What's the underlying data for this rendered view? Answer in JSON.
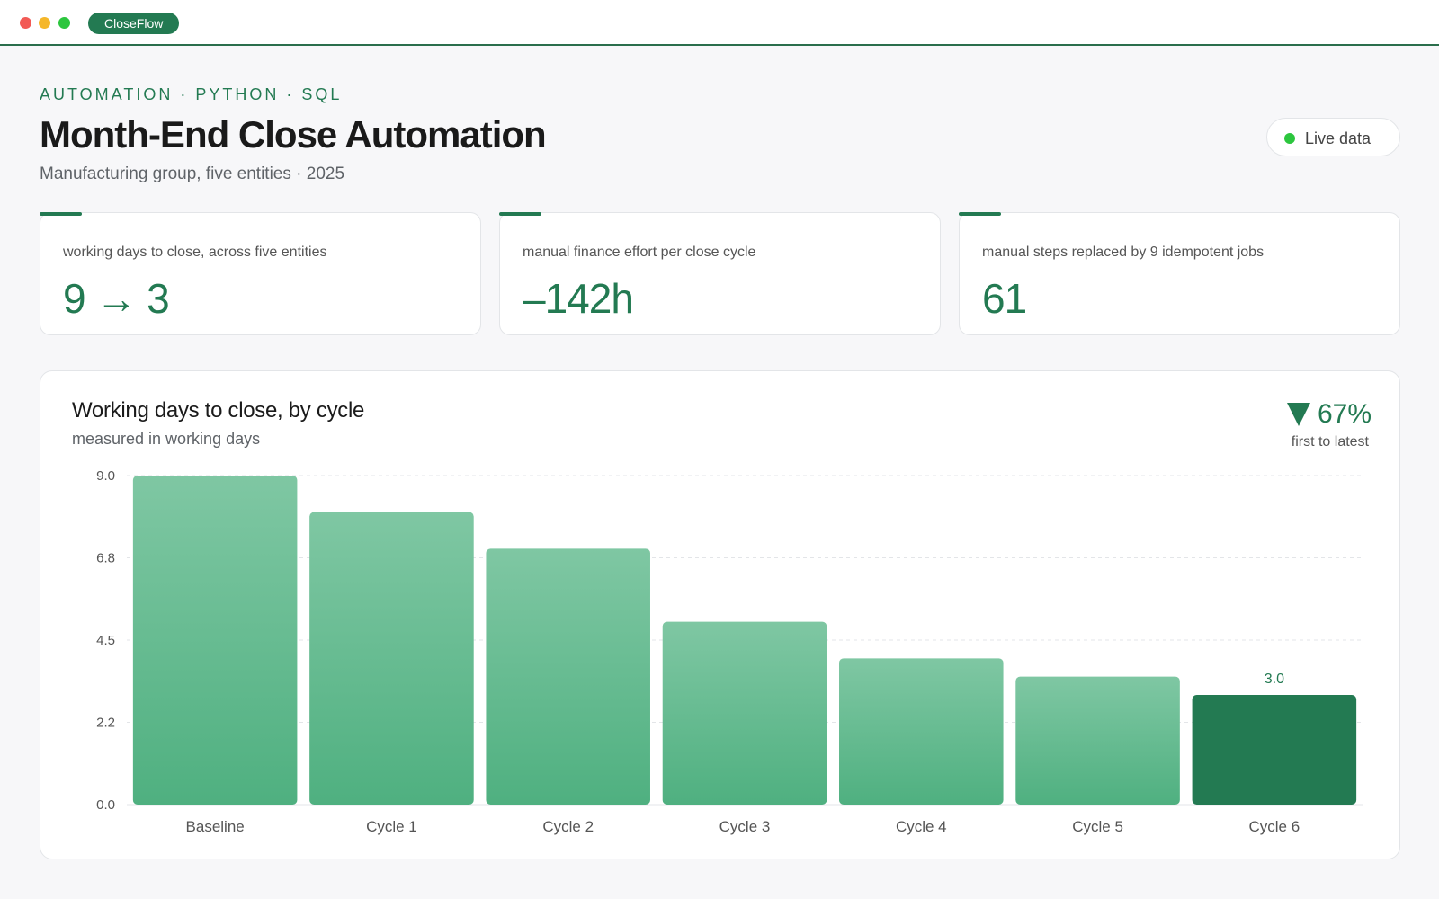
{
  "window": {
    "brand": "CloseFlow"
  },
  "header": {
    "eyebrow": "AUTOMATION · PYTHON · SQL",
    "title": "Month-End Close Automation",
    "subtitle": "Manufacturing group, five entities · 2025",
    "status_label": "Live data"
  },
  "kpis": [
    {
      "label": "working days to close, across five entities",
      "value": "9 → 3"
    },
    {
      "label": "manual finance effort per close cycle",
      "value": "–142h"
    },
    {
      "label": "manual steps replaced by 9 idempotent jobs",
      "value": "61"
    }
  ],
  "chart_panel": {
    "title": "Working days to close, by cycle",
    "subtitle": "measured in working days",
    "delta_value": "67%",
    "delta_caption": "first to latest",
    "delta_icon": "triangle-down-icon"
  },
  "colors": {
    "accent": "#237a52",
    "bar_top": "#7fc7a3",
    "bar_bottom": "#4fb080",
    "highlight_bar": "#237a52"
  },
  "chart_data": {
    "type": "bar",
    "categories": [
      "Baseline",
      "Cycle 1",
      "Cycle 2",
      "Cycle 3",
      "Cycle 4",
      "Cycle 5",
      "Cycle 6"
    ],
    "values": [
      9.0,
      8.0,
      7.0,
      5.0,
      4.0,
      3.5,
      3.0
    ],
    "ylim": [
      0,
      9.0
    ],
    "yticks": [
      "0.0",
      "2.2",
      "4.5",
      "6.8",
      "9.0"
    ],
    "ytick_values": [
      0,
      2.25,
      4.5,
      6.75,
      9.0
    ],
    "highlighted_index": 6,
    "data_labels": {
      "6": "3.0"
    },
    "grid": true
  }
}
